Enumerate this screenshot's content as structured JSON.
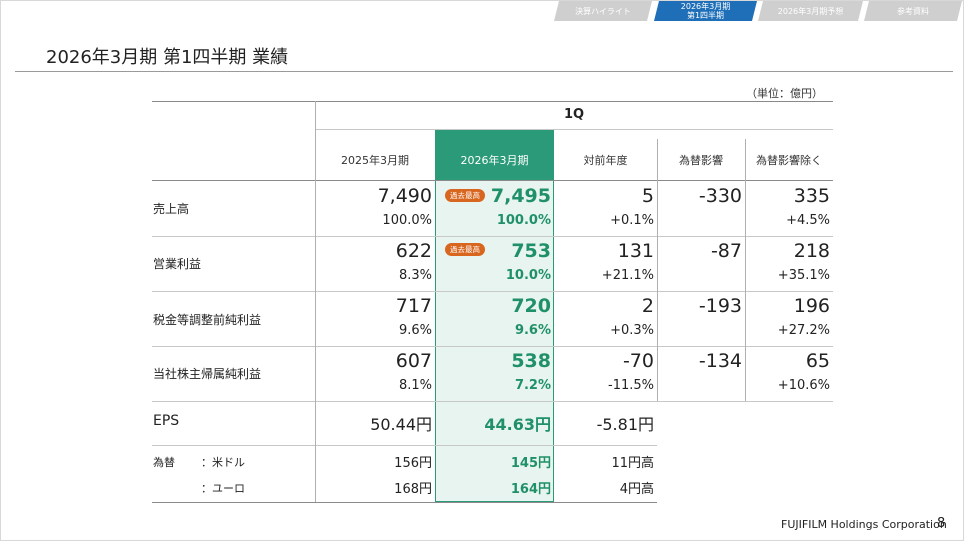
{
  "nav": {
    "tabs": [
      {
        "label": "決算ハイライト",
        "active": false
      },
      {
        "label": "2026年3月期 第1四半期",
        "active": true
      },
      {
        "label": "2026年3月期予想",
        "active": false
      },
      {
        "label": "参考資料",
        "active": false
      }
    ],
    "active_color": "#1e6fb8",
    "inactive_color": "#cfcfcf"
  },
  "title": "2026年3月期 第1四半期 業績",
  "unit": "（単位：億円）",
  "table": {
    "period_header": "1Q",
    "columns": [
      "2025年3月期",
      "2026年3月期",
      "対前年度",
      "為替影響",
      "為替影響除く"
    ],
    "badge": "過去最高",
    "rows": [
      {
        "label": "売上高",
        "prev": "7,490",
        "prev_sub": "100.0%",
        "curr": "7,495",
        "curr_sub": "100.0%",
        "yoy": "5",
        "yoy_sub": "+0.1%",
        "fx": "-330",
        "exfx": "335",
        "exfx_sub": "+4.5%",
        "badge": true
      },
      {
        "label": "営業利益",
        "prev": "622",
        "prev_sub": "8.3%",
        "curr": "753",
        "curr_sub": "10.0%",
        "yoy": "131",
        "yoy_sub": "+21.1%",
        "fx": "-87",
        "exfx": "218",
        "exfx_sub": "+35.1%",
        "badge": true
      },
      {
        "label": "税金等調整前純利益",
        "prev": "717",
        "prev_sub": "9.6%",
        "curr": "720",
        "curr_sub": "9.6%",
        "yoy": "2",
        "yoy_sub": "+0.3%",
        "fx": "-193",
        "exfx": "196",
        "exfx_sub": "+27.2%",
        "badge": false
      },
      {
        "label": "当社株主帰属純利益",
        "prev": "607",
        "prev_sub": "8.1%",
        "curr": "538",
        "curr_sub": "7.2%",
        "yoy": "-70",
        "yoy_sub": "-11.5%",
        "fx": "-134",
        "exfx": "65",
        "exfx_sub": "+10.6%",
        "badge": false
      }
    ],
    "eps": {
      "label": "EPS",
      "prev": "50.44円",
      "curr": "44.63円",
      "yoy": "-5.81円"
    },
    "fx_rates": {
      "label": "為替",
      "usd_label": "：米ドル",
      "eur_label": "：ユーロ",
      "usd": {
        "prev": "156円",
        "curr": "145円",
        "yoy": "11円高"
      },
      "eur": {
        "prev": "168円",
        "curr": "164円",
        "yoy": "4円高"
      }
    },
    "highlight_color": "#2a9a78",
    "badge_color": "#d9661f"
  },
  "footer": {
    "company": "FUJIFILM Holdings Corporation",
    "page": "8"
  }
}
